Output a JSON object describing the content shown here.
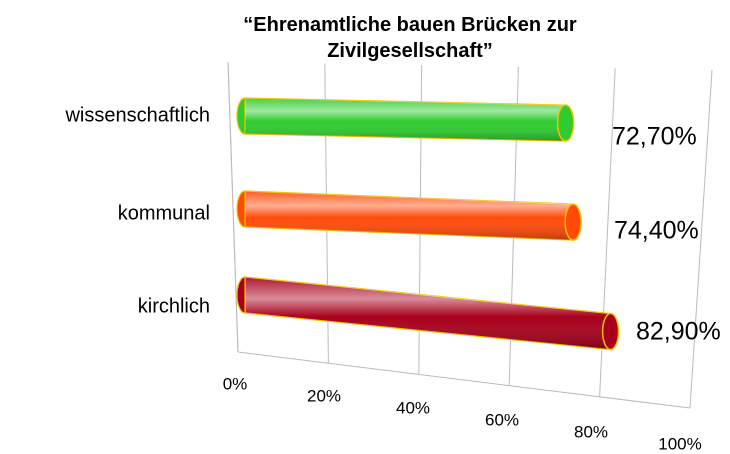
{
  "chart_data": {
    "type": "bar3d",
    "title": "“Ehrenamtliche bauen Brücken zur Zivilgesellschaft”",
    "categories": [
      "wissenschaftlich",
      "kommunal",
      "kirchlich"
    ],
    "values": [
      72.7,
      74.4,
      82.9
    ],
    "value_labels": [
      "72,70%",
      "74,40%",
      "82,90%"
    ],
    "colors": [
      "#2ecc2e",
      "#ff4a0a",
      "#a8001c"
    ],
    "xlim": [
      0,
      100
    ],
    "xticks": [
      {
        "value": 0,
        "label": "0%"
      },
      {
        "value": 20,
        "label": "20%"
      },
      {
        "value": 40,
        "label": "40%"
      },
      {
        "value": 60,
        "label": "60%"
      },
      {
        "value": 80,
        "label": "80%"
      },
      {
        "value": 100,
        "label": "100%"
      }
    ],
    "grid": true
  }
}
